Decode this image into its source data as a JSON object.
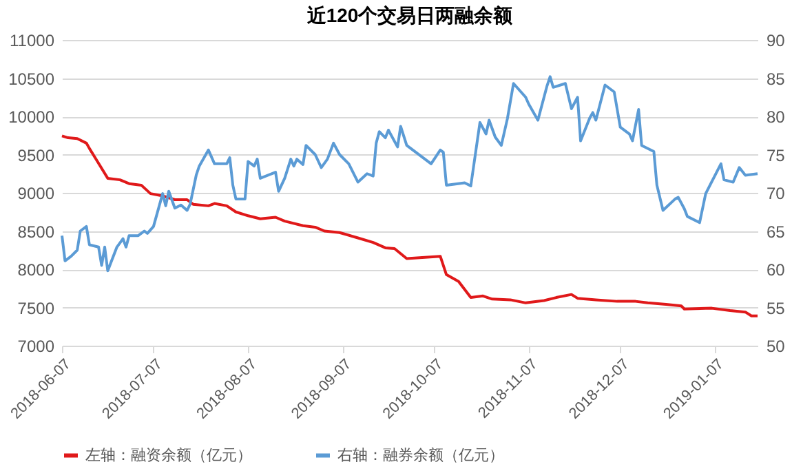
{
  "chart_data": {
    "type": "line",
    "title": "近120个交易日两融余额",
    "xlim": [
      "2018-06-07",
      "2019-01-21"
    ],
    "xticks": [
      "2018-06-07",
      "2018-07-07",
      "2018-08-07",
      "2018-09-07",
      "2018-10-07",
      "2018-11-07",
      "2018-12-07",
      "2019-01-07"
    ],
    "ylim": [
      7000,
      11000
    ],
    "yticks": [
      7000,
      7500,
      8000,
      8500,
      9000,
      9500,
      10000,
      10500,
      11000
    ],
    "y2lim": [
      50,
      90
    ],
    "y2ticks": [
      50,
      55,
      60,
      65,
      70,
      75,
      80,
      85,
      90
    ],
    "grid": "y",
    "legend": "bottom",
    "series": [
      {
        "name": "左轴：融资余额（亿元）",
        "color": "#e0191a",
        "axis": "y",
        "x": [
          "2018-06-07",
          "2018-06-09",
          "2018-06-12",
          "2018-06-15",
          "2018-06-16",
          "2018-06-18",
          "2018-06-22",
          "2018-06-26",
          "2018-06-29",
          "2018-07-03",
          "2018-07-06",
          "2018-07-10",
          "2018-07-14",
          "2018-07-18",
          "2018-07-20",
          "2018-07-25",
          "2018-07-27",
          "2018-07-31",
          "2018-08-03",
          "2018-08-07",
          "2018-08-11",
          "2018-08-16",
          "2018-08-19",
          "2018-08-25",
          "2018-08-29",
          "2018-09-01",
          "2018-09-06",
          "2018-09-12",
          "2018-09-17",
          "2018-09-21",
          "2018-09-24",
          "2018-09-28",
          "2018-10-09",
          "2018-10-11",
          "2018-10-15",
          "2018-10-19",
          "2018-10-23",
          "2018-10-26",
          "2018-11-01",
          "2018-11-06",
          "2018-11-12",
          "2018-11-16",
          "2018-11-21",
          "2018-11-23",
          "2018-11-29",
          "2018-12-06",
          "2018-12-12",
          "2018-12-16",
          "2018-12-22",
          "2018-12-27",
          "2018-12-28",
          "2019-01-06",
          "2019-01-12",
          "2019-01-17",
          "2019-01-19",
          "2019-01-21"
        ],
        "values": [
          9745,
          9720,
          9710,
          9650,
          9580,
          9450,
          9190,
          9170,
          9120,
          9100,
          8990,
          8960,
          8910,
          8910,
          8850,
          8830,
          8860,
          8830,
          8750,
          8700,
          8660,
          8680,
          8630,
          8570,
          8550,
          8500,
          8480,
          8410,
          8350,
          8280,
          8270,
          8140,
          8170,
          7930,
          7840,
          7630,
          7650,
          7610,
          7600,
          7560,
          7590,
          7630,
          7670,
          7620,
          7600,
          7580,
          7580,
          7560,
          7540,
          7520,
          7480,
          7490,
          7460,
          7440,
          7390,
          7390
        ]
      },
      {
        "name": "右轴：融券余额（亿元）",
        "color": "#5b9bd5",
        "axis": "y2",
        "x": [
          "2018-06-07",
          "2018-06-08",
          "2018-06-10",
          "2018-06-12",
          "2018-06-13",
          "2018-06-15",
          "2018-06-16",
          "2018-06-19",
          "2018-06-20",
          "2018-06-21",
          "2018-06-22",
          "2018-06-25",
          "2018-06-27",
          "2018-06-28",
          "2018-06-29",
          "2018-07-02",
          "2018-07-04",
          "2018-07-05",
          "2018-07-07",
          "2018-07-10",
          "2018-07-11",
          "2018-07-12",
          "2018-07-14",
          "2018-07-16",
          "2018-07-18",
          "2018-07-19",
          "2018-07-21",
          "2018-07-22",
          "2018-07-25",
          "2018-07-27",
          "2018-07-31",
          "2018-08-01",
          "2018-08-02",
          "2018-08-03",
          "2018-08-06",
          "2018-08-07",
          "2018-08-09",
          "2018-08-10",
          "2018-08-11",
          "2018-08-16",
          "2018-08-17",
          "2018-08-19",
          "2018-08-21",
          "2018-08-22",
          "2018-08-23",
          "2018-08-25",
          "2018-08-26",
          "2018-08-29",
          "2018-08-31",
          "2018-09-02",
          "2018-09-04",
          "2018-09-06",
          "2018-09-09",
          "2018-09-12",
          "2018-09-15",
          "2018-09-17",
          "2018-09-18",
          "2018-09-19",
          "2018-09-21",
          "2018-09-22",
          "2018-09-25",
          "2018-09-26",
          "2018-09-28",
          "2018-10-06",
          "2018-10-09",
          "2018-10-10",
          "2018-10-11",
          "2018-10-17",
          "2018-10-19",
          "2018-10-22",
          "2018-10-24",
          "2018-10-25",
          "2018-10-27",
          "2018-10-29",
          "2018-10-31",
          "2018-11-02",
          "2018-11-06",
          "2018-11-07",
          "2018-11-10",
          "2018-11-13",
          "2018-11-14",
          "2018-11-15",
          "2018-11-19",
          "2018-11-21",
          "2018-11-23",
          "2018-11-24",
          "2018-11-27",
          "2018-11-28",
          "2018-11-29",
          "2018-12-02",
          "2018-12-05",
          "2018-12-07",
          "2018-12-10",
          "2018-12-11",
          "2018-12-13",
          "2018-12-14",
          "2018-12-18",
          "2018-12-19",
          "2018-12-21",
          "2018-12-25",
          "2018-12-26",
          "2018-12-28",
          "2018-12-29",
          "2019-01-02",
          "2019-01-04",
          "2019-01-09",
          "2019-01-10",
          "2019-01-13",
          "2019-01-15",
          "2019-01-17",
          "2019-01-21"
        ],
        "values": [
          64.4,
          61.1,
          61.7,
          62.5,
          65.0,
          65.6,
          63.2,
          62.9,
          60.5,
          62.9,
          59.8,
          62.9,
          64.0,
          62.9,
          64.4,
          64.4,
          65.0,
          64.7,
          65.6,
          69.9,
          68.3,
          70.2,
          68.0,
          68.4,
          67.7,
          68.5,
          72.3,
          73.5,
          75.6,
          73.8,
          73.8,
          74.6,
          71.0,
          69.2,
          69.2,
          74.1,
          73.5,
          74.4,
          71.9,
          72.7,
          70.2,
          71.9,
          74.4,
          73.5,
          74.4,
          73.7,
          76.2,
          75.0,
          73.3,
          74.4,
          76.5,
          75.0,
          73.8,
          71.4,
          72.5,
          72.2,
          76.5,
          78.0,
          77.2,
          78.2,
          76.0,
          78.7,
          76.2,
          73.8,
          75.6,
          75.3,
          71.0,
          71.3,
          70.9,
          79.2,
          77.7,
          79.5,
          77.3,
          76.2,
          79.7,
          84.3,
          82.5,
          81.6,
          79.5,
          84.0,
          85.2,
          83.8,
          84.3,
          81.0,
          82.5,
          76.8,
          79.8,
          80.5,
          79.5,
          84.1,
          83.2,
          78.6,
          77.7,
          76.8,
          80.9,
          76.2,
          75.4,
          71.0,
          67.7,
          69.2,
          69.4,
          67.9,
          66.9,
          66.1,
          69.9,
          73.8,
          71.7,
          71.4,
          73.3,
          72.3,
          72.5
        ]
      }
    ]
  }
}
